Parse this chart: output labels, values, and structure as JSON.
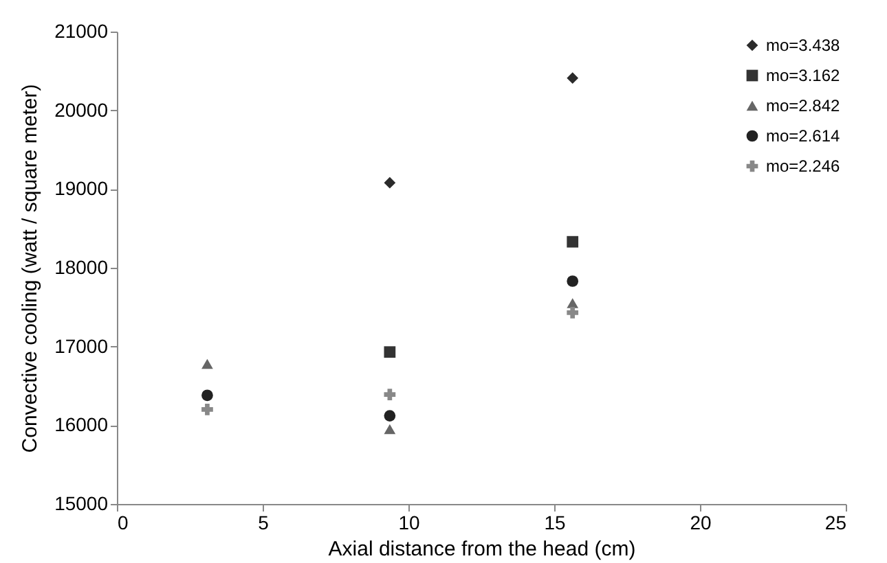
{
  "chart_data": {
    "type": "scatter",
    "xlabel": "Axial distance from the head (cm)",
    "ylabel": "Convective cooling (watt / square meter)",
    "x": [
      3.1,
      9.36,
      15.63
    ],
    "xlim": [
      0,
      25
    ],
    "xticks": [
      0,
      5,
      10,
      15,
      20,
      25
    ],
    "ylim": [
      15000,
      21000
    ],
    "yticks": [
      15000,
      16000,
      17000,
      18000,
      19000,
      20000,
      21000
    ],
    "grid": false,
    "legend": "top right",
    "series": [
      {
        "name": "mo=3.438",
        "color": "#2b2b2b",
        "marker": "diamond",
        "values": [
          null,
          19080,
          20410
        ]
      },
      {
        "name": "mo=3.162",
        "color": "#333333",
        "marker": "square",
        "values": [
          null,
          16930,
          18330
        ]
      },
      {
        "name": "mo=2.842",
        "color": "#666666",
        "marker": "triangle",
        "values": [
          16780,
          15950,
          17550
        ]
      },
      {
        "name": "mo=2.614",
        "color": "#222222",
        "marker": "circle",
        "values": [
          16380,
          16120,
          17830
        ]
      },
      {
        "name": "mo=2.246",
        "color": "#888888",
        "marker": "cross",
        "values": [
          16200,
          16390,
          17430
        ]
      }
    ]
  }
}
